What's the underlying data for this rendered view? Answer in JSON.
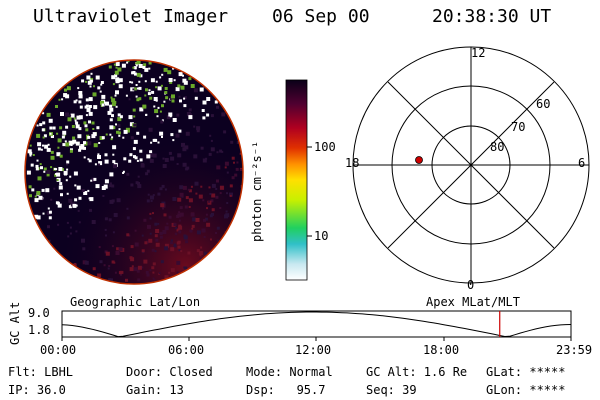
{
  "header": {
    "instrument": "Ultraviolet Imager",
    "date": "06 Sep 00",
    "time": "20:38:30 UT"
  },
  "colorbar": {
    "unit_label": "photon cm⁻²s⁻¹",
    "ticks": [
      "100",
      "10"
    ]
  },
  "polar_plot": {
    "mlt_labels": [
      "12",
      "18",
      "6",
      "0"
    ],
    "lat_labels": [
      "60",
      "70",
      "80"
    ],
    "spacecraft_marker_color": "#cc0000"
  },
  "timeline": {
    "left_label": "Geographic Lat/Lon",
    "right_label": "Apex MLat/MLT",
    "axis_label": "GC Alt",
    "y_ticks": [
      "9.0",
      "1.8"
    ],
    "x_ticks": [
      "00:00",
      "06:00",
      "12:00",
      "18:00",
      "23:59"
    ],
    "current_time_marker_hour": 20.64,
    "marker_color": "#cc0000"
  },
  "info": {
    "flt": "Flt: LBHL",
    "ip": "IP: 36.0",
    "door": "Door: Closed",
    "gain": "Gain: 13",
    "mode": "Mode: Normal",
    "dsp": "Dsp:   95.7",
    "gc_alt": "GC Alt: 1.6 Re",
    "seq": "Seq: 39",
    "glat": "GLat: *****",
    "glon": "GLon: *****"
  }
}
